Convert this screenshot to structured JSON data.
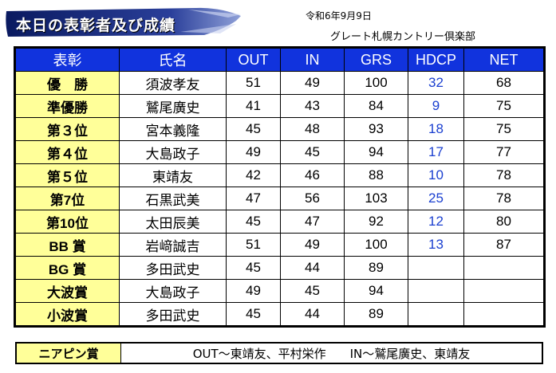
{
  "header": {
    "title": "本日の表彰者及び成績",
    "date": "令和6年9月9日",
    "club": "グレート札幌カントリー倶楽部"
  },
  "table": {
    "columns": [
      "表彰",
      "氏名",
      "OUT",
      "IN",
      "GRS",
      "HDCP",
      "NET"
    ],
    "rows": [
      {
        "award": "優　勝",
        "name": "須波孝友",
        "out": "51",
        "in": "49",
        "grs": "100",
        "hdcp": "32",
        "net": "68"
      },
      {
        "award": "準優勝",
        "name": "鷲尾廣史",
        "out": "41",
        "in": "43",
        "grs": "84",
        "hdcp": "9",
        "net": "75"
      },
      {
        "award": "第３位",
        "name": "宮本義隆",
        "out": "45",
        "in": "48",
        "grs": "93",
        "hdcp": "18",
        "net": "75"
      },
      {
        "award": "第４位",
        "name": "大島政子",
        "out": "49",
        "in": "45",
        "grs": "94",
        "hdcp": "17",
        "net": "77"
      },
      {
        "award": "第５位",
        "name": "東靖友",
        "out": "42",
        "in": "46",
        "grs": "88",
        "hdcp": "10",
        "net": "78"
      },
      {
        "award": "第7位",
        "name": "石黒武美",
        "out": "47",
        "in": "56",
        "grs": "103",
        "hdcp": "25",
        "net": "78"
      },
      {
        "award": "第10位",
        "name": "太田辰美",
        "out": "45",
        "in": "47",
        "grs": "92",
        "hdcp": "12",
        "net": "80"
      },
      {
        "award": "BB 賞",
        "name": "岩﨑誠吉",
        "out": "51",
        "in": "49",
        "grs": "100",
        "hdcp": "13",
        "net": "87"
      },
      {
        "award": "BG 賞",
        "name": "多田武史",
        "out": "45",
        "in": "44",
        "grs": "89",
        "hdcp": "",
        "net": ""
      },
      {
        "award": "大波賞",
        "name": "大島政子",
        "out": "49",
        "in": "45",
        "grs": "94",
        "hdcp": "",
        "net": ""
      },
      {
        "award": "小波賞",
        "name": "多田武史",
        "out": "45",
        "in": "44",
        "grs": "89",
        "hdcp": "",
        "net": ""
      }
    ]
  },
  "nearpin": {
    "label": "ニアピン賞",
    "value": "OUT～東靖友、平村栄作　　IN～鷲尾廣史、東靖友"
  },
  "colors": {
    "header_bg": "#1133dd",
    "award_bg": "#ffff99",
    "hdcp_text": "#1a3fd0",
    "banner": "#1a2d7a"
  }
}
